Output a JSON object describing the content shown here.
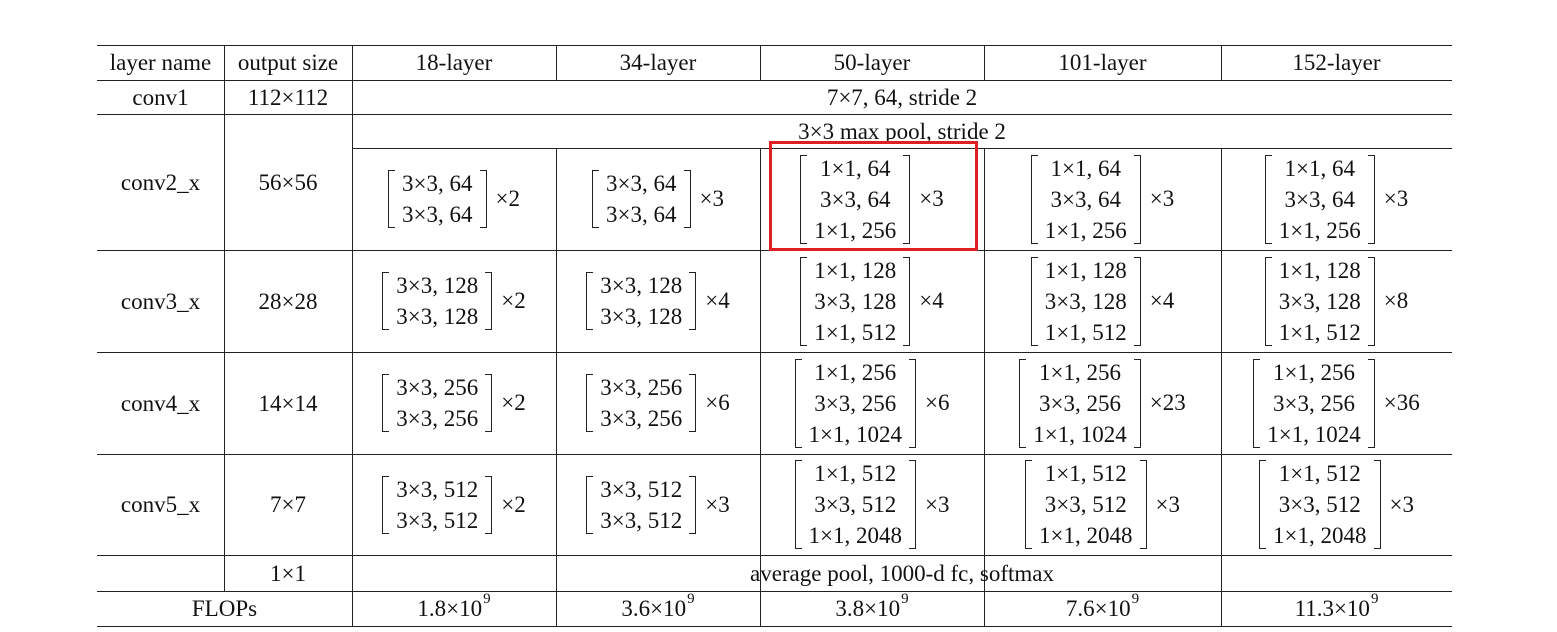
{
  "table": {
    "headers": [
      "layer name",
      "output size",
      "18-layer",
      "34-layer",
      "50-layer",
      "101-layer",
      "152-layer"
    ],
    "conv1": {
      "name": "conv1",
      "size": "112×112",
      "spec": "7×7, 64, stride 2"
    },
    "conv2": {
      "name": "conv2_x",
      "size": "56×56",
      "pool": "3×3 max pool, stride 2",
      "blocks": [
        {
          "lines": [
            "3×3, 64",
            "3×3, 64"
          ],
          "mult": "×2"
        },
        {
          "lines": [
            "3×3, 64",
            "3×3, 64"
          ],
          "mult": "×3"
        },
        {
          "lines": [
            "1×1, 64",
            "3×3, 64",
            "1×1, 256"
          ],
          "mult": "×3"
        },
        {
          "lines": [
            "1×1, 64",
            "3×3, 64",
            "1×1, 256"
          ],
          "mult": "×3"
        },
        {
          "lines": [
            "1×1, 64",
            "3×3, 64",
            "1×1, 256"
          ],
          "mult": "×3"
        }
      ]
    },
    "conv3": {
      "name": "conv3_x",
      "size": "28×28",
      "blocks": [
        {
          "lines": [
            "3×3, 128",
            "3×3, 128"
          ],
          "mult": "×2"
        },
        {
          "lines": [
            "3×3, 128",
            "3×3, 128"
          ],
          "mult": "×4"
        },
        {
          "lines": [
            "1×1, 128",
            "3×3, 128",
            "1×1, 512"
          ],
          "mult": "×4"
        },
        {
          "lines": [
            "1×1, 128",
            "3×3, 128",
            "1×1, 512"
          ],
          "mult": "×4"
        },
        {
          "lines": [
            "1×1, 128",
            "3×3, 128",
            "1×1, 512"
          ],
          "mult": "×8"
        }
      ]
    },
    "conv4": {
      "name": "conv4_x",
      "size": "14×14",
      "blocks": [
        {
          "lines": [
            "3×3, 256",
            "3×3, 256"
          ],
          "mult": "×2"
        },
        {
          "lines": [
            "3×3, 256",
            "3×3, 256"
          ],
          "mult": "×6"
        },
        {
          "lines": [
            "1×1, 256",
            "3×3, 256",
            "1×1, 1024"
          ],
          "mult": "×6"
        },
        {
          "lines": [
            "1×1, 256",
            "3×3, 256",
            "1×1, 1024"
          ],
          "mult": "×23"
        },
        {
          "lines": [
            "1×1, 256",
            "3×3, 256",
            "1×1, 1024"
          ],
          "mult": "×36"
        }
      ]
    },
    "conv5": {
      "name": "conv5_x",
      "size": "7×7",
      "blocks": [
        {
          "lines": [
            "3×3, 512",
            "3×3, 512"
          ],
          "mult": "×2"
        },
        {
          "lines": [
            "3×3, 512",
            "3×3, 512"
          ],
          "mult": "×3"
        },
        {
          "lines": [
            "1×1, 512",
            "3×3, 512",
            "1×1, 2048"
          ],
          "mult": "×3"
        },
        {
          "lines": [
            "1×1, 512",
            "3×3, 512",
            "1×1, 2048"
          ],
          "mult": "×3"
        },
        {
          "lines": [
            "1×1, 512",
            "3×3, 512",
            "1×1, 2048"
          ],
          "mult": "×3"
        }
      ]
    },
    "final": {
      "size": "1×1",
      "spec": "average pool, 1000-d fc, softmax"
    },
    "flops": {
      "label": "FLOPs",
      "values": [
        {
          "base": "1.8×10",
          "exp": "9"
        },
        {
          "base": "3.6×10",
          "exp": "9"
        },
        {
          "base": "3.8×10",
          "exp": "9"
        },
        {
          "base": "7.6×10",
          "exp": "9"
        },
        {
          "base": "11.3×10",
          "exp": "9"
        }
      ]
    }
  },
  "highlight_color": "#e02020"
}
